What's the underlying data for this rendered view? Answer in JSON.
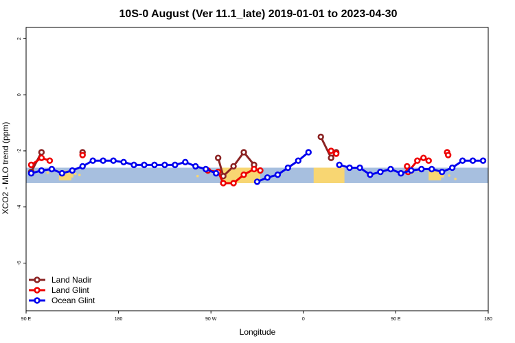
{
  "chart_data": {
    "type": "line",
    "title": "10S-0 August (Ver 11.1_late)   2019-01-01 to 2023-04-30",
    "xlabel": "Longitude",
    "ylabel": "XCO2 - MLO trend (ppm)",
    "xlim": [
      90,
      540
    ],
    "ylim": [
      -7.7,
      2.4
    ],
    "x_ticks": [
      90,
      180,
      270,
      360,
      450,
      540
    ],
    "x_tick_labels": [
      "90 E",
      "180",
      "90 W",
      "0",
      "90 E",
      "180"
    ],
    "y_ticks": [
      2,
      0,
      -2,
      -4,
      -6
    ],
    "y_tick_labels": [
      "2",
      "0",
      "-2",
      "-4",
      "-6"
    ],
    "lat_band": [
      -3.15,
      -2.6
    ],
    "legend_position": "bottom-left",
    "series": [
      {
        "name": "Land Nadir",
        "color": "#8b2323",
        "segments": [
          [
            [
              95,
              -2.75
            ],
            [
              105,
              -2.05
            ]
          ],
          [
            [
              145,
              -2.05
            ]
          ],
          [
            [
              277,
              -2.25
            ],
            [
              282,
              -2.9
            ],
            [
              292,
              -2.55
            ],
            [
              302,
              -2.05
            ],
            [
              312,
              -2.5
            ]
          ],
          [
            [
              377,
              -1.5
            ],
            [
              387,
              -2.25
            ],
            [
              392,
              -2.05
            ]
          ]
        ]
      },
      {
        "name": "Land Glint",
        "color": "#ee0000",
        "segments": [
          [
            [
              95,
              -2.5
            ],
            [
              105,
              -2.25
            ],
            [
              113,
              -2.35
            ]
          ],
          [
            [
              145,
              -2.15
            ]
          ],
          [
            [
              267,
              -2.7
            ],
            [
              277,
              -2.75
            ],
            [
              282,
              -3.15
            ],
            [
              292,
              -3.15
            ],
            [
              302,
              -2.85
            ],
            [
              312,
              -2.65
            ],
            [
              318,
              -2.7
            ]
          ],
          [
            [
              387,
              -2.0
            ],
            [
              392,
              -2.1
            ]
          ],
          [
            [
              461,
              -2.55
            ],
            [
              462,
              -2.75
            ],
            [
              471,
              -2.35
            ],
            [
              477,
              -2.25
            ],
            [
              482,
              -2.35
            ]
          ],
          [
            [
              500,
              -2.05
            ],
            [
              501,
              -2.15
            ]
          ]
        ]
      },
      {
        "name": "Ocean Glint",
        "color": "#0000ee",
        "segments": [
          [
            [
              95,
              -2.8
            ],
            [
              105,
              -2.7
            ],
            [
              115,
              -2.65
            ],
            [
              125,
              -2.8
            ],
            [
              135,
              -2.7
            ],
            [
              145,
              -2.55
            ],
            [
              155,
              -2.35
            ],
            [
              165,
              -2.35
            ],
            [
              175,
              -2.35
            ],
            [
              185,
              -2.4
            ],
            [
              195,
              -2.5
            ],
            [
              205,
              -2.5
            ],
            [
              215,
              -2.5
            ],
            [
              225,
              -2.5
            ],
            [
              235,
              -2.5
            ],
            [
              245,
              -2.4
            ],
            [
              255,
              -2.55
            ],
            [
              265,
              -2.65
            ],
            [
              275,
              -2.8
            ]
          ],
          [
            [
              315,
              -3.1
            ],
            [
              325,
              -2.95
            ],
            [
              335,
              -2.85
            ],
            [
              345,
              -2.6
            ],
            [
              355,
              -2.35
            ],
            [
              365,
              -2.05
            ]
          ],
          [
            [
              395,
              -2.5
            ],
            [
              405,
              -2.6
            ],
            [
              415,
              -2.6
            ],
            [
              425,
              -2.85
            ],
            [
              435,
              -2.75
            ],
            [
              445,
              -2.65
            ],
            [
              455,
              -2.8
            ],
            [
              465,
              -2.7
            ],
            [
              475,
              -2.65
            ],
            [
              485,
              -2.65
            ],
            [
              495,
              -2.75
            ],
            [
              505,
              -2.6
            ],
            [
              515,
              -2.35
            ],
            [
              525,
              -2.35
            ],
            [
              535,
              -2.35
            ]
          ]
        ]
      }
    ]
  }
}
